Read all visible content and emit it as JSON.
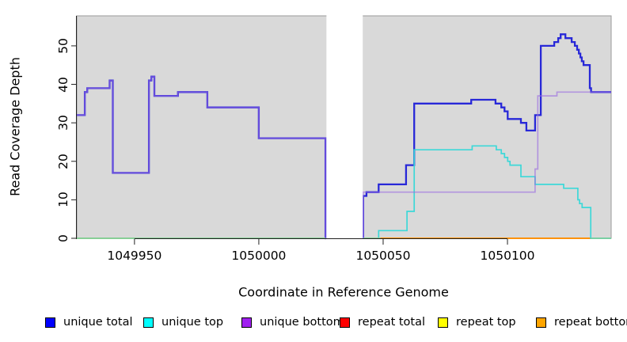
{
  "chart_data": {
    "type": "line",
    "title": "",
    "xlabel": "Coordinate in Reference Genome",
    "ylabel": "Read Coverage Depth",
    "x_tick_labels": [
      "1049950",
      "1050000",
      "1050050",
      "1050100"
    ],
    "x_tick_values": [
      1049950,
      1050000,
      1050050,
      1050100
    ],
    "y_tick_labels": [
      "0",
      "10",
      "20",
      "30",
      "40",
      "50"
    ],
    "y_tick_values": [
      0,
      10,
      20,
      30,
      40,
      50
    ],
    "xlim": [
      1049926.8,
      1050141.7
    ],
    "ylim": [
      0,
      57.8
    ],
    "grid": false,
    "legend_position": "bottom",
    "plot_background": "#d9d9d9",
    "plot_border_color": "#9b9b9b",
    "axis_color": "#222222",
    "masked_region": {
      "x_start": 1050027.2,
      "x_end": 1050041.8,
      "color": "#ffffff"
    },
    "series": [
      {
        "name": "repeat total",
        "legend_color": "#ff0000",
        "line_color": "#e02020",
        "line_opacity": 1,
        "line_width": 1.4,
        "segments": [
          {
            "steps": [
              [
                1050048,
                0
              ]
            ],
            "end": 1050141.7
          }
        ]
      },
      {
        "name": "repeat top",
        "legend_color": "#ffff00",
        "line_color": "#f0f000",
        "line_opacity": 1,
        "line_width": 1.4,
        "segments": [
          {
            "steps": [
              [
                1050048,
                0
              ]
            ],
            "end": 1050141.7
          }
        ]
      },
      {
        "name": "repeat bottom",
        "legend_color": "#ffa500",
        "line_color": "#ff8c00",
        "line_opacity": 1,
        "line_width": 1.8,
        "segments": [
          {
            "steps": [
              [
                1050048,
                0
              ]
            ],
            "end": 1050141.7
          }
        ]
      },
      {
        "name": "unique total",
        "legend_color": "#0000ff",
        "line_color": "#2828d8",
        "line_opacity": 1,
        "line_width": 2.3,
        "segments": [
          {
            "steps": [
              [
                1049926.8,
                32
              ],
              [
                1049930,
                38
              ],
              [
                1049931,
                39
              ],
              [
                1049940,
                41
              ],
              [
                1049941.3,
                17
              ],
              [
                1049955.8,
                41
              ],
              [
                1049956.8,
                42
              ],
              [
                1049958,
                37
              ],
              [
                1049967.5,
                38
              ],
              [
                1049979.3,
                34
              ],
              [
                1050000,
                26
              ],
              [
                1050026.8,
                0
              ]
            ],
            "end": 1050027.1
          },
          {
            "steps": [
              [
                1050042,
                0
              ],
              [
                1050042,
                11
              ],
              [
                1050043.3,
                12
              ],
              [
                1050048.2,
                14
              ],
              [
                1050059.2,
                19
              ],
              [
                1050062.5,
                35
              ],
              [
                1050085.4,
                36
              ],
              [
                1050095.2,
                35
              ],
              [
                1050097.5,
                34
              ],
              [
                1050098.8,
                33
              ],
              [
                1050100.1,
                31
              ],
              [
                1050105.4,
                30
              ],
              [
                1050107.6,
                28
              ],
              [
                1050111.1,
                32
              ],
              [
                1050113.4,
                50
              ],
              [
                1050118.8,
                51
              ],
              [
                1050120.4,
                52
              ],
              [
                1050121.4,
                53
              ],
              [
                1050123.3,
                52
              ],
              [
                1050125.8,
                51
              ],
              [
                1050127.1,
                50
              ],
              [
                1050128,
                49
              ],
              [
                1050128.7,
                48
              ],
              [
                1050129.3,
                47
              ],
              [
                1050129.9,
                46
              ],
              [
                1050130.6,
                45
              ],
              [
                1050133.1,
                39
              ],
              [
                1050133.6,
                38
              ]
            ],
            "end": 1050141.7
          }
        ]
      },
      {
        "name": "unique top",
        "legend_color": "#00ffff",
        "line_color": "#35d8d8",
        "line_opacity": 0.95,
        "line_width": 1.7,
        "segments": [
          {
            "steps": [
              [
                1049926.8,
                0
              ]
            ],
            "end": 1050026.8
          },
          {
            "steps": [
              [
                1050042,
                0
              ],
              [
                1050048.2,
                2
              ],
              [
                1050059.6,
                7
              ],
              [
                1050062.5,
                23
              ],
              [
                1050085.8,
                24
              ],
              [
                1050095.5,
                23
              ],
              [
                1050097.5,
                22
              ],
              [
                1050098.8,
                21
              ],
              [
                1050100.1,
                20
              ],
              [
                1050101,
                19
              ],
              [
                1050105.4,
                16
              ],
              [
                1050111.1,
                14
              ],
              [
                1050122.6,
                13
              ],
              [
                1050128.3,
                10
              ],
              [
                1050129,
                9
              ],
              [
                1050130,
                8
              ],
              [
                1050133.5,
                0
              ]
            ],
            "end": 1050141.7
          }
        ]
      },
      {
        "name": "unique bottom",
        "legend_color": "#a020f0",
        "line_color": "#9a6ae0",
        "line_opacity": 0.62,
        "line_width": 1.7,
        "segments": [
          {
            "steps": [
              [
                1049926.8,
                32
              ],
              [
                1049930,
                38
              ],
              [
                1049931,
                39
              ],
              [
                1049940,
                41
              ],
              [
                1049941.3,
                17
              ],
              [
                1049955.8,
                41
              ],
              [
                1049956.8,
                42
              ],
              [
                1049958,
                37
              ],
              [
                1049967.5,
                38
              ],
              [
                1049979.3,
                34
              ],
              [
                1050000,
                26
              ],
              [
                1050026.8,
                0
              ]
            ],
            "end": 1050027.1
          },
          {
            "steps": [
              [
                1050042,
                0
              ],
              [
                1050042,
                12
              ],
              [
                1050111.1,
                18
              ],
              [
                1050112.2,
                37
              ],
              [
                1050119.9,
                38
              ]
            ],
            "end": 1050141.7
          }
        ]
      }
    ],
    "overlap_baselines": [
      {
        "x_start": 1049926.8,
        "x_end": 1050026.8,
        "color": "#8ccc8c",
        "line_width": 1.7
      },
      {
        "x_start": 1050042.3,
        "x_end": 1050049,
        "color": "#8ccc8c",
        "line_width": 1.7
      },
      {
        "x_start": 1050133.6,
        "x_end": 1050141.7,
        "color": "#7bd0a4",
        "line_width": 1.7
      }
    ]
  },
  "legend": {
    "items": [
      {
        "label": "unique total",
        "color": "#0000ff"
      },
      {
        "label": "unique top",
        "color": "#00ffff"
      },
      {
        "label": "unique bottom",
        "color": "#a020f0"
      },
      {
        "label": "repeat total",
        "color": "#ff0000"
      },
      {
        "label": "repeat top",
        "color": "#ffff00"
      },
      {
        "label": "repeat bottom",
        "color": "#ffa500"
      }
    ]
  }
}
